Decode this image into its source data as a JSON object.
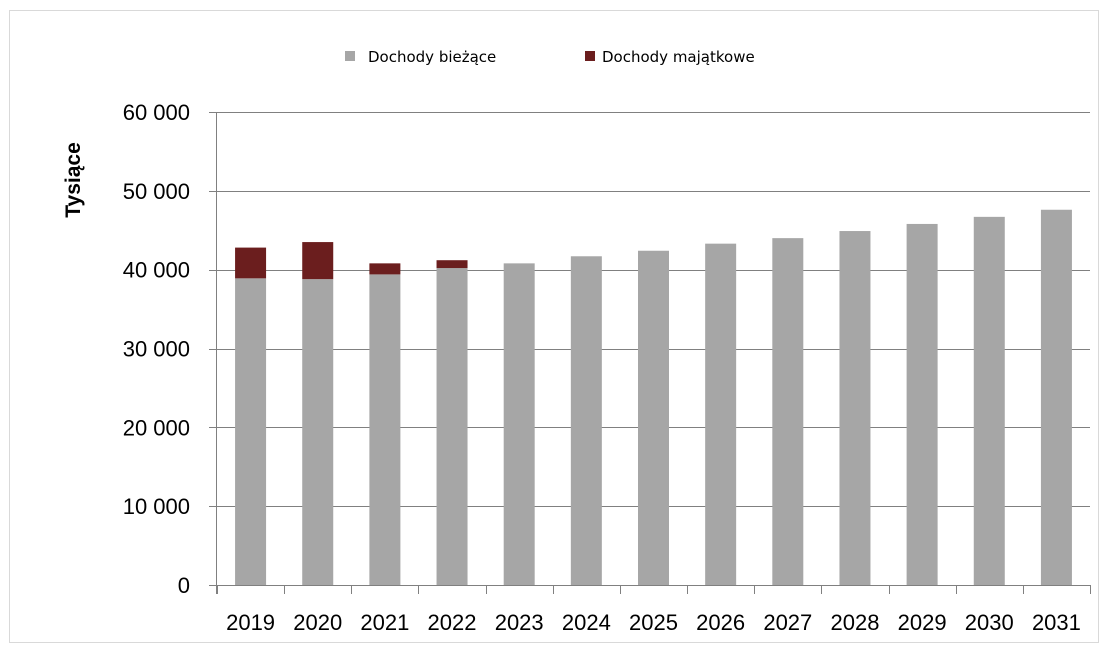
{
  "chart_data": {
    "type": "bar",
    "stacked": true,
    "ylabel": "Tysiące",
    "ylim": [
      0,
      60000
    ],
    "yticks": [
      0,
      10000,
      20000,
      30000,
      40000,
      50000,
      60000
    ],
    "ytick_labels": [
      "0",
      "10 000",
      "20 000",
      "30 000",
      "40 000",
      "50 000",
      "60 000"
    ],
    "grid": true,
    "legend_position": "top",
    "categories": [
      "2019",
      "2020",
      "2021",
      "2022",
      "2023",
      "2024",
      "2025",
      "2026",
      "2027",
      "2028",
      "2029",
      "2030",
      "2031"
    ],
    "series": [
      {
        "name": "Dochody bieżące",
        "color": "#a6a6a6",
        "values": [
          38900,
          38800,
          39400,
          40200,
          40800,
          41700,
          42400,
          43300,
          44000,
          44900,
          45800,
          46700,
          47600
        ]
      },
      {
        "name": "Dochody majątkowe",
        "color": "#6b1e1e",
        "values": [
          3900,
          4700,
          1400,
          1000,
          0,
          0,
          0,
          0,
          0,
          0,
          0,
          0,
          0
        ]
      }
    ]
  }
}
